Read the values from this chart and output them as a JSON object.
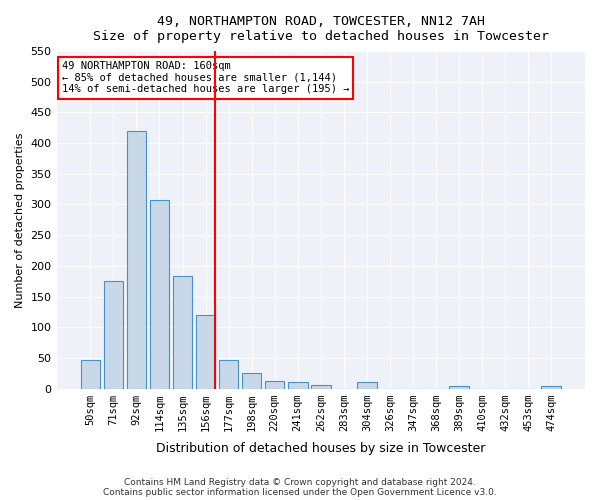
{
  "title": "49, NORTHAMPTON ROAD, TOWCESTER, NN12 7AH",
  "subtitle": "Size of property relative to detached houses in Towcester",
  "xlabel": "Distribution of detached houses by size in Towcester",
  "ylabel": "Number of detached properties",
  "bar_labels": [
    "50sqm",
    "71sqm",
    "92sqm",
    "114sqm",
    "135sqm",
    "156sqm",
    "177sqm",
    "198sqm",
    "220sqm",
    "241sqm",
    "262sqm",
    "283sqm",
    "304sqm",
    "326sqm",
    "347sqm",
    "368sqm",
    "389sqm",
    "410sqm",
    "432sqm",
    "453sqm",
    "474sqm"
  ],
  "bar_values": [
    47,
    175,
    420,
    308,
    183,
    120,
    47,
    25,
    12,
    10,
    5,
    0,
    10,
    0,
    0,
    0,
    4,
    0,
    0,
    0,
    4
  ],
  "bar_color": "#c8d8e8",
  "bar_edgecolor": "#4a90c8",
  "red_line_index": 5,
  "annotation_title": "49 NORTHAMPTON ROAD: 160sqm",
  "annotation_line1": "← 85% of detached houses are smaller (1,144)",
  "annotation_line2": "14% of semi-detached houses are larger (195) →",
  "ylim": [
    0,
    550
  ],
  "yticks": [
    0,
    50,
    100,
    150,
    200,
    250,
    300,
    350,
    400,
    450,
    500,
    550
  ],
  "background_color": "#eef2f8",
  "footer_line1": "Contains HM Land Registry data © Crown copyright and database right 2024.",
  "footer_line2": "Contains public sector information licensed under the Open Government Licence v3.0."
}
